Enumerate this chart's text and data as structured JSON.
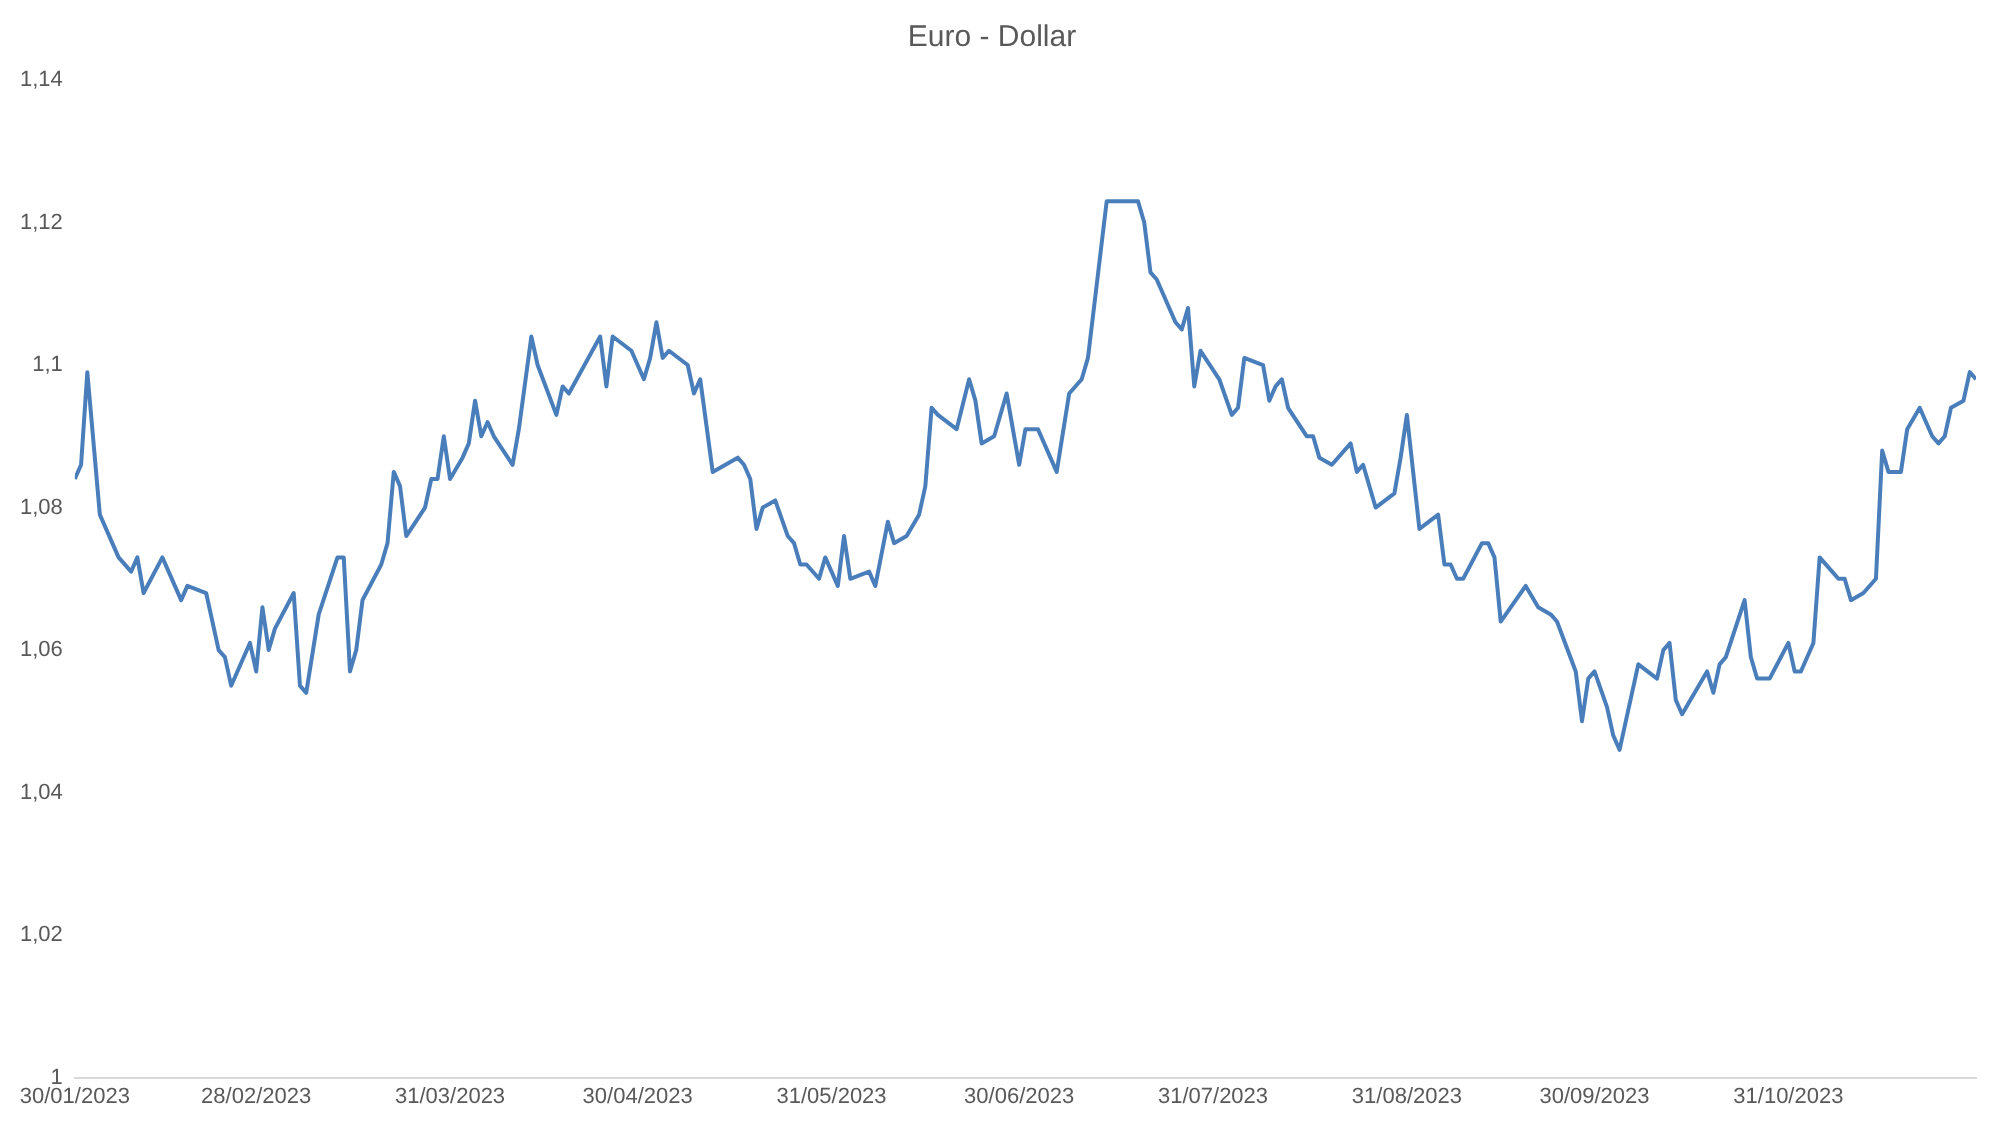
{
  "chart_data": {
    "type": "line",
    "title": "Euro - Dollar",
    "x": [
      "2023-01-30",
      "2023-01-31",
      "2023-02-01",
      "2023-02-03",
      "2023-02-06",
      "2023-02-08",
      "2023-02-09",
      "2023-02-10",
      "2023-02-13",
      "2023-02-15",
      "2023-02-16",
      "2023-02-17",
      "2023-02-20",
      "2023-02-22",
      "2023-02-23",
      "2023-02-24",
      "2023-02-27",
      "2023-02-28",
      "2023-03-01",
      "2023-03-02",
      "2023-03-03",
      "2023-03-06",
      "2023-03-07",
      "2023-03-08",
      "2023-03-10",
      "2023-03-13",
      "2023-03-14",
      "2023-03-15",
      "2023-03-16",
      "2023-03-17",
      "2023-03-20",
      "2023-03-21",
      "2023-03-22",
      "2023-03-23",
      "2023-03-24",
      "2023-03-27",
      "2023-03-28",
      "2023-03-29",
      "2023-03-30",
      "2023-03-31",
      "2023-04-02",
      "2023-04-03",
      "2023-04-04",
      "2023-04-05",
      "2023-04-06",
      "2023-04-07",
      "2023-04-10",
      "2023-04-11",
      "2023-04-13",
      "2023-04-14",
      "2023-04-17",
      "2023-04-18",
      "2023-04-19",
      "2023-04-24",
      "2023-04-25",
      "2023-04-26",
      "2023-04-29",
      "2023-05-01",
      "2023-05-02",
      "2023-05-03",
      "2023-05-04",
      "2023-05-05",
      "2023-05-08",
      "2023-05-09",
      "2023-05-10",
      "2023-05-12",
      "2023-05-16",
      "2023-05-17",
      "2023-05-18",
      "2023-05-19",
      "2023-05-20",
      "2023-05-22",
      "2023-05-24",
      "2023-05-25",
      "2023-05-26",
      "2023-05-27",
      "2023-05-29",
      "2023-05-30",
      "2023-06-01",
      "2023-06-02",
      "2023-06-03",
      "2023-06-06",
      "2023-06-07",
      "2023-06-09",
      "2023-06-10",
      "2023-06-12",
      "2023-06-14",
      "2023-06-15",
      "2023-06-16",
      "2023-06-17",
      "2023-06-20",
      "2023-06-22",
      "2023-06-23",
      "2023-06-24",
      "2023-06-26",
      "2023-06-28",
      "2023-06-30",
      "2023-07-01",
      "2023-07-03",
      "2023-07-06",
      "2023-07-08",
      "2023-07-10",
      "2023-07-11",
      "2023-07-14",
      "2023-07-16",
      "2023-07-18",
      "2023-07-19",
      "2023-07-20",
      "2023-07-21",
      "2023-07-22",
      "2023-07-25",
      "2023-07-26",
      "2023-07-27",
      "2023-07-28",
      "2023-07-29",
      "2023-08-01",
      "2023-08-03",
      "2023-08-04",
      "2023-08-05",
      "2023-08-08",
      "2023-08-09",
      "2023-08-10",
      "2023-08-11",
      "2023-08-12",
      "2023-08-15",
      "2023-08-16",
      "2023-08-17",
      "2023-08-19",
      "2023-08-22",
      "2023-08-23",
      "2023-08-24",
      "2023-08-26",
      "2023-08-29",
      "2023-08-30",
      "2023-08-31",
      "2023-09-02",
      "2023-09-05",
      "2023-09-06",
      "2023-09-07",
      "2023-09-08",
      "2023-09-09",
      "2023-09-12",
      "2023-09-13",
      "2023-09-14",
      "2023-09-15",
      "2023-09-19",
      "2023-09-21",
      "2023-09-23",
      "2023-09-24",
      "2023-09-27",
      "2023-09-28",
      "2023-09-29",
      "2023-09-30",
      "2023-10-02",
      "2023-10-03",
      "2023-10-04",
      "2023-10-07",
      "2023-10-10",
      "2023-10-11",
      "2023-10-12",
      "2023-10-13",
      "2023-10-14",
      "2023-10-18",
      "2023-10-19",
      "2023-10-20",
      "2023-10-21",
      "2023-10-24",
      "2023-10-25",
      "2023-10-26",
      "2023-10-28",
      "2023-10-31",
      "2023-11-01",
      "2023-11-02",
      "2023-11-04",
      "2023-11-05",
      "2023-11-07",
      "2023-11-08",
      "2023-11-09",
      "2023-11-10",
      "2023-11-12",
      "2023-11-14",
      "2023-11-15",
      "2023-11-16",
      "2023-11-18",
      "2023-11-19",
      "2023-11-21",
      "2023-11-23",
      "2023-11-24",
      "2023-11-25",
      "2023-11-26",
      "2023-11-28",
      "2023-11-29",
      "2023-11-30"
    ],
    "series": [
      {
        "color": "#4a7ebb",
        "values": [
          1.084,
          1.086,
          1.099,
          1.079,
          1.073,
          1.071,
          1.073,
          1.068,
          1.073,
          1.069,
          1.067,
          1.069,
          1.068,
          1.06,
          1.059,
          1.055,
          1.061,
          1.057,
          1.066,
          1.06,
          1.063,
          1.068,
          1.055,
          1.054,
          1.065,
          1.073,
          1.073,
          1.057,
          1.06,
          1.067,
          1.072,
          1.075,
          1.085,
          1.083,
          1.076,
          1.08,
          1.084,
          1.084,
          1.09,
          1.084,
          1.087,
          1.089,
          1.095,
          1.09,
          1.092,
          1.09,
          1.086,
          1.091,
          1.104,
          1.1,
          1.093,
          1.097,
          1.096,
          1.104,
          1.097,
          1.104,
          1.102,
          1.098,
          1.101,
          1.106,
          1.101,
          1.102,
          1.1,
          1.096,
          1.098,
          1.085,
          1.087,
          1.086,
          1.084,
          1.077,
          1.08,
          1.081,
          1.076,
          1.075,
          1.072,
          1.072,
          1.07,
          1.073,
          1.069,
          1.076,
          1.07,
          1.071,
          1.069,
          1.078,
          1.075,
          1.076,
          1.079,
          1.083,
          1.094,
          1.093,
          1.091,
          1.098,
          1.095,
          1.089,
          1.09,
          1.096,
          1.086,
          1.091,
          1.091,
          1.085,
          1.096,
          1.098,
          1.101,
          1.123,
          1.123,
          1.123,
          1.123,
          1.12,
          1.113,
          1.112,
          1.106,
          1.105,
          1.108,
          1.097,
          1.102,
          1.098,
          1.093,
          1.094,
          1.101,
          1.1,
          1.095,
          1.097,
          1.098,
          1.094,
          1.09,
          1.09,
          1.087,
          1.086,
          1.089,
          1.085,
          1.086,
          1.08,
          1.082,
          1.087,
          1.093,
          1.077,
          1.079,
          1.072,
          1.072,
          1.07,
          1.07,
          1.075,
          1.075,
          1.073,
          1.064,
          1.069,
          1.066,
          1.065,
          1.064,
          1.057,
          1.05,
          1.056,
          1.057,
          1.052,
          1.048,
          1.046,
          1.058,
          1.056,
          1.06,
          1.061,
          1.053,
          1.051,
          1.057,
          1.054,
          1.058,
          1.059,
          1.067,
          1.059,
          1.056,
          1.056,
          1.061,
          1.057,
          1.057,
          1.061,
          1.073,
          1.071,
          1.07,
          1.07,
          1.067,
          1.068,
          1.07,
          1.088,
          1.085,
          1.085,
          1.091,
          1.094,
          1.09,
          1.089,
          1.09,
          1.094,
          1.095,
          1.099,
          1.098
        ]
      }
    ],
    "xlim": [
      "2023-01-30",
      "2023-11-30"
    ],
    "xticks": [
      {
        "value": "2023-01-30",
        "label": "30/01/2023"
      },
      {
        "value": "2023-02-28",
        "label": "28/02/2023"
      },
      {
        "value": "2023-03-31",
        "label": "31/03/2023"
      },
      {
        "value": "2023-04-30",
        "label": "30/04/2023"
      },
      {
        "value": "2023-05-31",
        "label": "31/05/2023"
      },
      {
        "value": "2023-06-30",
        "label": "30/06/2023"
      },
      {
        "value": "2023-07-31",
        "label": "31/07/2023"
      },
      {
        "value": "2023-08-31",
        "label": "31/08/2023"
      },
      {
        "value": "2023-09-30",
        "label": "30/09/2023"
      },
      {
        "value": "2023-10-31",
        "label": "31/10/2023"
      }
    ],
    "ylim": [
      1,
      1.14
    ],
    "yticks": [
      1,
      {
        "value": 1.02,
        "label": "1,02"
      },
      {
        "value": 1.04,
        "label": "1,04"
      },
      {
        "value": 1.06,
        "label": "1,06"
      },
      {
        "value": 1.08,
        "label": "1,08"
      },
      {
        "value": 1.1,
        "label": "1,1"
      },
      {
        "value": 1.12,
        "label": "1,12"
      },
      {
        "value": 1.14,
        "label": "1,14"
      }
    ],
    "marker": "none",
    "line_style": "solid"
  }
}
